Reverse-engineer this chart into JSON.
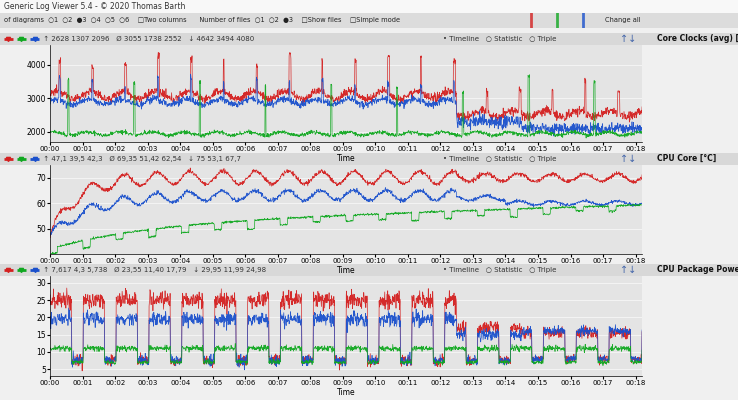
{
  "title_bar": "Generic Log Viewer 5.4 - © 2020 Thomas Barth",
  "bg_color": "#f0f0f0",
  "plot_bg": "#e4e4e4",
  "header_bg": "#d8d8d8",
  "toolbar_bg": "#e8e8e8",
  "panel1": {
    "ylabel": "Core Clocks (avg) [MHz]",
    "ylim": [
      1700,
      4600
    ],
    "yticks": [
      2000,
      3000,
      4000
    ],
    "stats": " ↑ 2628 1307 2096   Ø 3055 1738 2552   ↓ 4642 3494 4080"
  },
  "panel2": {
    "ylabel": "CPU Core [°C]",
    "ylim": [
      40,
      75
    ],
    "yticks": [
      50,
      60,
      70
    ],
    "stats": " ↑ 47,1 39,5 42,3   Ø 69,35 51,42 62,54   ↓ 75 53,1 67,7"
  },
  "panel3": {
    "ylabel": "CPU Package Power [W]",
    "ylim": [
      3,
      32
    ],
    "yticks": [
      5,
      10,
      15,
      20,
      25,
      30
    ],
    "stats": " ↑ 7,617 4,3 5,738   Ø 23,55 11,40 17,79   ↓ 29,95 11,99 24,98"
  },
  "time_ticks": [
    "00:00",
    "00:01",
    "00:02",
    "00:03",
    "00:04",
    "00:05",
    "00:06",
    "00:07",
    "00:08",
    "00:09",
    "00:10",
    "00:11",
    "00:12",
    "00:13",
    "00:14",
    "00:15",
    "00:16",
    "00:17",
    "00:18"
  ],
  "time_label": "Time",
  "red": "#d42020",
  "blue": "#1a50cc",
  "green": "#10a820",
  "n_points": 2000,
  "total_minutes": 18.2,
  "toolbar_text": "of diagrams  ○1  ○2  ●3  ○4  ○5  ○6    □Two columns      Number of files  ○1  ○2  ●3    □Show files    □Simple mode",
  "toolbar_right": "Change all"
}
